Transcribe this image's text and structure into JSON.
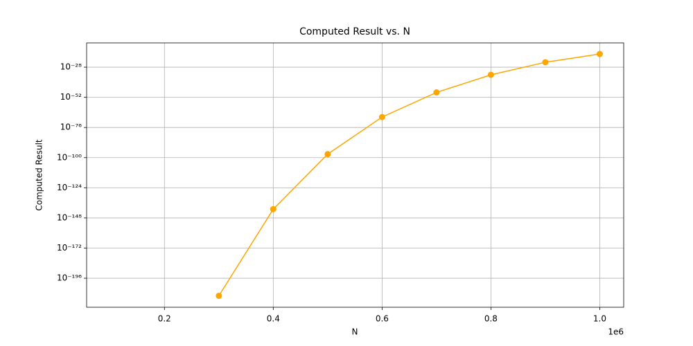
{
  "chart_data": {
    "type": "line",
    "title": "Computed Result vs. N",
    "xlabel": "N",
    "ylabel": "Computed Result",
    "x_offset_label": "1e6",
    "x": [
      100000,
      200000,
      300000,
      400000,
      500000,
      600000,
      700000,
      800000,
      900000,
      1000000
    ],
    "series": [
      {
        "name": "Computed Result",
        "color": "#ffa500",
        "values": [
          null,
          null,
          1e-210,
          1e-141,
          6e-98,
          2e-68,
          8e-49,
          8e-35,
          8e-25,
          3e-18
        ]
      }
    ],
    "xlim": [
      57000,
      1044000
    ],
    "xticks": [
      {
        "value": 200000,
        "label": "0.2"
      },
      {
        "value": 400000,
        "label": "0.4"
      },
      {
        "value": 600000,
        "label": "0.6"
      },
      {
        "value": 800000,
        "label": "0.8"
      },
      {
        "value": 1000000,
        "label": "1.0"
      }
    ],
    "ylim": [
      8e-220,
      2e-09
    ],
    "ylog": true,
    "yticks": [
      {
        "value": 1e-196,
        "label": "10⁻¹⁹⁶"
      },
      {
        "value": 1e-172,
        "label": "10⁻¹⁷²"
      },
      {
        "value": 1e-148,
        "label": "10⁻¹⁴⁸"
      },
      {
        "value": 1e-124,
        "label": "10⁻¹²⁴"
      },
      {
        "value": 1e-100,
        "label": "10⁻¹⁰⁰"
      },
      {
        "value": 1e-76,
        "label": "10⁻⁷⁶"
      },
      {
        "value": 1e-52,
        "label": "10⁻⁵²"
      },
      {
        "value": 1e-28,
        "label": "10⁻²⁸"
      }
    ],
    "grid": true
  }
}
